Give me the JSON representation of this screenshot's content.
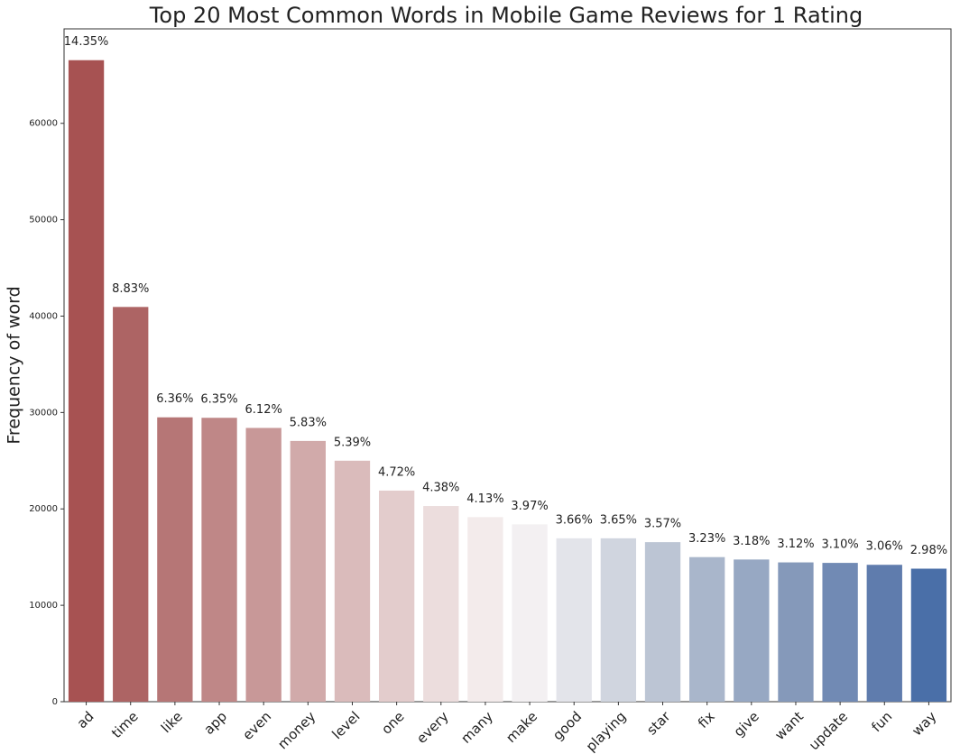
{
  "chart_data": {
    "type": "bar",
    "title": "Top 20 Most Common Words in Mobile Game Reviews for 1 Rating",
    "y_label": "Frequency of word",
    "categories": [
      "ad",
      "time",
      "like",
      "app",
      "even",
      "money",
      "level",
      "one",
      "every",
      "many",
      "make",
      "good",
      "playing",
      "star",
      "fix",
      "give",
      "want",
      "update",
      "fun",
      "way"
    ],
    "values": [
      66550,
      40950,
      29500,
      29450,
      28400,
      27050,
      25000,
      21900,
      20300,
      19150,
      18400,
      16950,
      16950,
      16550,
      15000,
      14750,
      14450,
      14400,
      14200,
      13800
    ],
    "bar_labels": [
      "14.35%",
      "8.83%",
      "6.36%",
      "6.35%",
      "6.12%",
      "5.83%",
      "5.39%",
      "4.72%",
      "4.38%",
      "4.13%",
      "3.97%",
      "3.66%",
      "3.65%",
      "3.57%",
      "3.23%",
      "3.18%",
      "3.12%",
      "3.10%",
      "3.06%",
      "2.98%"
    ],
    "colors": [
      "#a75252",
      "#ad6464",
      "#b67676",
      "#bf8787",
      "#c89898",
      "#d1aaaa",
      "#dabbbb",
      "#e3cccc",
      "#ecdddd",
      "#f3ebeb",
      "#f3f0f2",
      "#e3e4ea",
      "#d0d5df",
      "#bcc5d4",
      "#a9b6cb",
      "#97a8c3",
      "#8599ba",
      "#718ab4",
      "#5f7cad",
      "#4a6fa8"
    ],
    "ylim": [
      0,
      69800
    ],
    "yticks": [
      0,
      10000,
      20000,
      30000,
      40000,
      50000,
      60000
    ]
  }
}
